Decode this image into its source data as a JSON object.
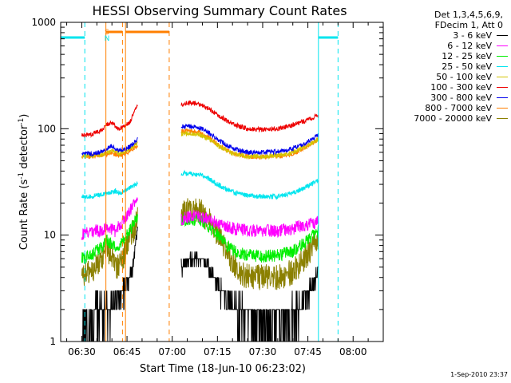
{
  "chart_data": {
    "type": "line",
    "title": "HESSI Observing Summary Count Rates",
    "xlabel": "Start Time (18-Jun-10 06:23:02)",
    "ylabel_main": "Count Rate (s",
    "ylabel_sup1": "-1",
    "ylabel_mid": " detector",
    "ylabel_sup2": "-1",
    "ylabel_end": ")",
    "y_scale": "log",
    "ylim": [
      1,
      1000
    ],
    "xlim_minutes": [
      -7,
      100
    ],
    "x_ticks": [
      {
        "m": 0,
        "label": "06:30"
      },
      {
        "m": 15,
        "label": "06:45"
      },
      {
        "m": 30,
        "label": "07:00"
      },
      {
        "m": 45,
        "label": "07:15"
      },
      {
        "m": 60,
        "label": "07:30"
      },
      {
        "m": 75,
        "label": "07:45"
      },
      {
        "m": 90,
        "label": "08:00"
      }
    ],
    "y_ticks": [
      {
        "v": 1,
        "label": "1"
      },
      {
        "v": 10,
        "label": "10"
      },
      {
        "v": 100,
        "label": "100"
      },
      {
        "v": 1000,
        "label": "1000"
      }
    ],
    "legend_header": [
      "Det 1,3,4,5,6,9,",
      "FDecim 1, Att 0"
    ],
    "series": [
      {
        "name": "3 - 6 keV",
        "color": "#000000",
        "segments": [
          [
            [
              0,
              1.0
            ],
            [
              3,
              1.5
            ],
            [
              5,
              2.0
            ],
            [
              7,
              2.2
            ],
            [
              9,
              2.0
            ],
            [
              11,
              2.2
            ],
            [
              13,
              2.8
            ],
            [
              15,
              3.5
            ],
            [
              17,
              5.0
            ],
            [
              18.5,
              12.0
            ]
          ],
          [
            [
              33,
              5.0
            ],
            [
              36,
              6.0
            ],
            [
              39,
              6.0
            ],
            [
              42,
              5.0
            ],
            [
              45,
              3.5
            ],
            [
              48,
              2.5
            ],
            [
              51,
              2.0
            ],
            [
              55,
              1.6
            ],
            [
              60,
              1.6
            ],
            [
              65,
              1.6
            ],
            [
              70,
              1.8
            ],
            [
              74,
              2.5
            ],
            [
              77,
              3.5
            ],
            [
              78.5,
              5.0
            ]
          ]
        ]
      },
      {
        "name": "6 - 12 keV",
        "color": "#ff00ff",
        "segments": [
          [
            [
              0,
              10
            ],
            [
              3,
              11
            ],
            [
              6,
              11
            ],
            [
              9,
              12
            ],
            [
              11,
              11
            ],
            [
              14,
              14
            ],
            [
              16,
              17
            ],
            [
              18.5,
              22
            ]
          ],
          [
            [
              33,
              14
            ],
            [
              36,
              15
            ],
            [
              39,
              15
            ],
            [
              42,
              14
            ],
            [
              45,
              13
            ],
            [
              48,
              12
            ],
            [
              51,
              11.5
            ],
            [
              55,
              11
            ],
            [
              60,
              11
            ],
            [
              65,
              11
            ],
            [
              70,
              11.5
            ],
            [
              74,
              12.5
            ],
            [
              77,
              13
            ],
            [
              78.5,
              13.5
            ]
          ]
        ]
      },
      {
        "name": "12 - 25 keV",
        "color": "#00ee00",
        "segments": [
          [
            [
              0,
              6
            ],
            [
              3,
              6.5
            ],
            [
              6,
              7.5
            ],
            [
              8.5,
              9
            ],
            [
              10,
              8
            ],
            [
              12,
              7.5
            ],
            [
              14,
              9
            ],
            [
              16,
              11
            ],
            [
              18.5,
              15
            ]
          ],
          [
            [
              33,
              14
            ],
            [
              36,
              14
            ],
            [
              39,
              14
            ],
            [
              42,
              12
            ],
            [
              45,
              10
            ],
            [
              48,
              8
            ],
            [
              51,
              7
            ],
            [
              55,
              6.5
            ],
            [
              60,
              6.3
            ],
            [
              65,
              6.5
            ],
            [
              70,
              7
            ],
            [
              74,
              8.5
            ],
            [
              77,
              10
            ],
            [
              78.5,
              11
            ]
          ]
        ]
      },
      {
        "name": "25 - 50 keV",
        "color": "#00e5ee",
        "segments": [
          [
            [
              0,
              23
            ],
            [
              3,
              23
            ],
            [
              6,
              24
            ],
            [
              9,
              25
            ],
            [
              11,
              26
            ],
            [
              13,
              25
            ],
            [
              15,
              27
            ],
            [
              17,
              29
            ],
            [
              18.5,
              31
            ]
          ],
          [
            [
              33,
              38
            ],
            [
              36,
              38
            ],
            [
              39,
              37
            ],
            [
              42,
              34
            ],
            [
              45,
              30
            ],
            [
              48,
              27
            ],
            [
              51,
              25
            ],
            [
              55,
              23.5
            ],
            [
              60,
              23
            ],
            [
              65,
              23
            ],
            [
              70,
              25
            ],
            [
              74,
              28
            ],
            [
              77,
              31
            ],
            [
              78.5,
              33
            ]
          ]
        ]
      },
      {
        "name": "50 - 100 keV",
        "color": "#d4c400",
        "segments": [
          [
            [
              0,
              55
            ],
            [
              3,
              56
            ],
            [
              6,
              57
            ],
            [
              8.5,
              60
            ],
            [
              10,
              63
            ],
            [
              12,
              58
            ],
            [
              14,
              60
            ],
            [
              16,
              65
            ],
            [
              18.5,
              72
            ]
          ],
          [
            [
              33,
              90
            ],
            [
              36,
              90
            ],
            [
              39,
              88
            ],
            [
              42,
              80
            ],
            [
              45,
              70
            ],
            [
              48,
              62
            ],
            [
              51,
              58
            ],
            [
              55,
              55
            ],
            [
              60,
              55
            ],
            [
              65,
              56
            ],
            [
              70,
              60
            ],
            [
              74,
              68
            ],
            [
              77,
              75
            ],
            [
              78.5,
              80
            ]
          ]
        ]
      },
      {
        "name": "100 - 300 keV",
        "color": "#ee0000",
        "segments": [
          [
            [
              0,
              86
            ],
            [
              3,
              88
            ],
            [
              6,
              95
            ],
            [
              8.5,
              110
            ],
            [
              10,
              115
            ],
            [
              12,
              100
            ],
            [
              14,
              105
            ],
            [
              16,
              115
            ],
            [
              18.5,
              170
            ]
          ],
          [
            [
              33,
              170
            ],
            [
              36,
              175
            ],
            [
              39,
              170
            ],
            [
              42,
              155
            ],
            [
              45,
              135
            ],
            [
              48,
              120
            ],
            [
              51,
              108
            ],
            [
              55,
              100
            ],
            [
              60,
              98
            ],
            [
              65,
              100
            ],
            [
              70,
              108
            ],
            [
              74,
              118
            ],
            [
              77,
              128
            ],
            [
              78.5,
              135
            ]
          ]
        ]
      },
      {
        "name": "300 - 800 keV",
        "color": "#0000ee",
        "segments": [
          [
            [
              0,
              58
            ],
            [
              3,
              58
            ],
            [
              6,
              60
            ],
            [
              8.5,
              65
            ],
            [
              10,
              70
            ],
            [
              12,
              62
            ],
            [
              14,
              64
            ],
            [
              16,
              68
            ],
            [
              18.5,
              80
            ]
          ],
          [
            [
              33,
              105
            ],
            [
              36,
              105
            ],
            [
              39,
              102
            ],
            [
              42,
              92
            ],
            [
              45,
              80
            ],
            [
              48,
              70
            ],
            [
              51,
              64
            ],
            [
              55,
              60
            ],
            [
              60,
              60
            ],
            [
              65,
              61
            ],
            [
              70,
              65
            ],
            [
              74,
              73
            ],
            [
              77,
              82
            ],
            [
              78.5,
              88
            ]
          ]
        ]
      },
      {
        "name": "800 - 7000 keV",
        "color": "#ff7f00",
        "segments": [
          [
            [
              0,
              55
            ],
            [
              3,
              55
            ],
            [
              6,
              56
            ],
            [
              8.5,
              58
            ],
            [
              10,
              60
            ],
            [
              12,
              56
            ],
            [
              14,
              58
            ],
            [
              16,
              62
            ],
            [
              18.5,
              70
            ]
          ],
          [
            [
              33,
              95
            ],
            [
              36,
              95
            ],
            [
              39,
              92
            ],
            [
              42,
              82
            ],
            [
              45,
              72
            ],
            [
              48,
              63
            ],
            [
              51,
              58
            ],
            [
              55,
              55
            ],
            [
              60,
              54
            ],
            [
              65,
              55
            ],
            [
              70,
              58
            ],
            [
              74,
              66
            ],
            [
              77,
              75
            ],
            [
              78.5,
              80
            ]
          ]
        ]
      },
      {
        "name": "7000 - 20000 keV",
        "color": "#8b8000",
        "segments": [
          [
            [
              0,
              4
            ],
            [
              3,
              4.5
            ],
            [
              6,
              5.5
            ],
            [
              8.5,
              7.5
            ],
            [
              10,
              6
            ],
            [
              12,
              5
            ],
            [
              14,
              6.5
            ],
            [
              16,
              9
            ],
            [
              18.5,
              14
            ]
          ],
          [
            [
              33,
              16
            ],
            [
              36,
              17
            ],
            [
              39,
              17
            ],
            [
              42,
              14
            ],
            [
              45,
              10
            ],
            [
              48,
              7
            ],
            [
              51,
              5
            ],
            [
              55,
              4
            ],
            [
              60,
              4
            ],
            [
              65,
              4
            ],
            [
              70,
              4.5
            ],
            [
              74,
              6
            ],
            [
              77,
              8
            ],
            [
              78.5,
              10
            ]
          ]
        ]
      }
    ],
    "attenuator_states": [
      {
        "label": "S",
        "color": "#ff7f00"
      },
      {
        "label": "N",
        "color": "#00e5ee"
      }
    ],
    "markers": {
      "night": [
        {
          "color": "#00e5ee",
          "solid": [
            -7,
            1
          ],
          "dashed": [
            1
          ]
        },
        {
          "color": "#00e5ee",
          "solid": [
            78.5,
            85
          ],
          "dashed": [
            85
          ]
        }
      ],
      "saa": [
        {
          "color": "#ff7f00",
          "solid": [
            8,
            13.5
          ],
          "dashed": [
            13.5
          ]
        },
        {
          "color": "#ff7f00",
          "solid": [
            14.5,
            29
          ],
          "dashed": [
            29
          ]
        }
      ]
    },
    "timestamp": "1-Sep-2010 23:37"
  }
}
